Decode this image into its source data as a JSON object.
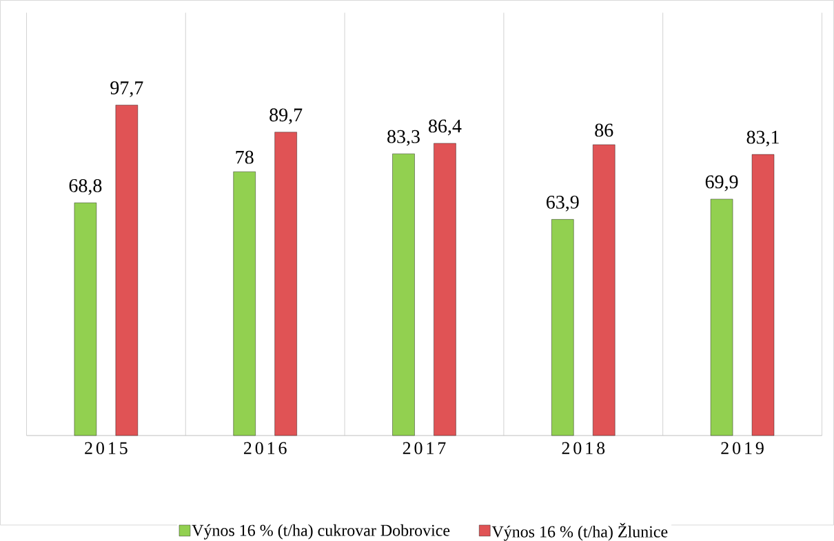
{
  "chart_data": {
    "type": "bar",
    "categories": [
      "2015",
      "2016",
      "2017",
      "2018",
      "2019"
    ],
    "series": [
      {
        "name": "Výnos 16 % (t/ha)  cukrovar Dobrovice",
        "color": "#92d050",
        "values": [
          68.8,
          78,
          83.3,
          63.9,
          69.9
        ],
        "value_labels": [
          "68,8",
          "78",
          "83,3",
          "63,9",
          "69,9"
        ]
      },
      {
        "name": "Výnos 16 % (t/ha) Žlunice",
        "color": "#e05355",
        "values": [
          97.7,
          89.7,
          86.4,
          86,
          83.1
        ],
        "value_labels": [
          "97,7",
          "89,7",
          "86,4",
          "86",
          "83,1"
        ]
      }
    ],
    "ylim": [
      0,
      125
    ],
    "grid": "x",
    "legend": "bottom"
  }
}
